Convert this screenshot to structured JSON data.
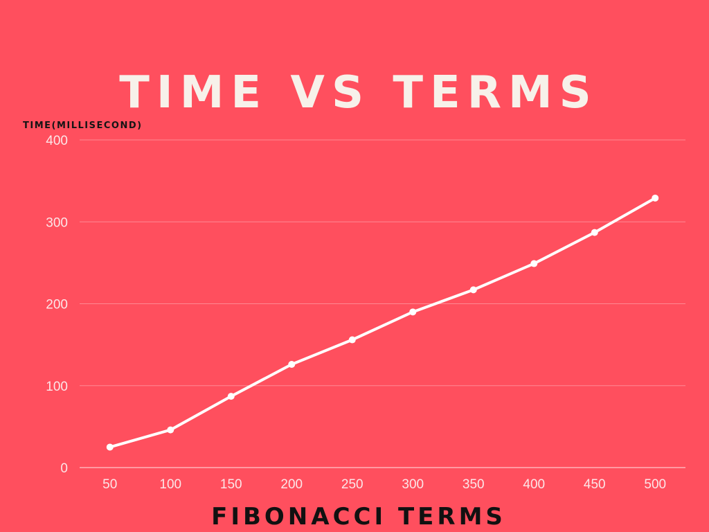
{
  "chart_data": {
    "type": "line",
    "title": "TIME VS TERMS",
    "xlabel": "FIBONACCI TERMS",
    "ylabel": "TIME(MILLISECOND)",
    "categories": [
      "50",
      "100",
      "150",
      "200",
      "250",
      "300",
      "350",
      "400",
      "450",
      "500"
    ],
    "series": [
      {
        "values": [
          25,
          46,
          87,
          126,
          156,
          190,
          217,
          249,
          287,
          329
        ]
      }
    ],
    "ylim": [
      0,
      400
    ],
    "yticks": [
      "0",
      "100",
      "200",
      "300",
      "400"
    ],
    "grid": true,
    "legend": "none",
    "colors": {
      "background": "#FF4F5E",
      "line": "#FFFFFF",
      "title": "#F7F1EA",
      "axis_title": "#111111",
      "tick_label": "#FCE6E8",
      "grid": "#FF8A93"
    }
  }
}
